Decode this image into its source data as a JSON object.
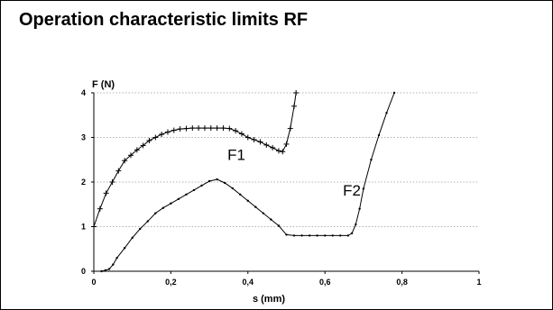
{
  "page": {
    "title": "Operation characteristic limits RF"
  },
  "chart_data": {
    "type": "line",
    "title": "Operation characteristic limits RF",
    "xlabel": "s (mm)",
    "ylabel": "F (N)",
    "xlim": [
      0,
      1
    ],
    "ylim": [
      0,
      4
    ],
    "x_ticks": [
      0,
      0.2,
      0.4,
      0.6,
      0.8,
      1
    ],
    "x_tick_labels": [
      "0",
      "0,2",
      "0,4",
      "0,6",
      "0,8",
      "1"
    ],
    "y_ticks": [
      0,
      1,
      2,
      3,
      4
    ],
    "y_tick_labels": [
      "0",
      "1",
      "2",
      "3",
      "4"
    ],
    "grid": "horizontal-dotted",
    "annotations": [
      {
        "text": "F1",
        "x": 0.37,
        "y": 2.5
      },
      {
        "text": "F2",
        "x": 0.67,
        "y": 1.7
      }
    ],
    "series": [
      {
        "name": "",
        "color": "#000000",
        "marker": "plus",
        "x": [
          0,
          0.016,
          0.032,
          0.048,
          0.064,
          0.08,
          0.096,
          0.112,
          0.128,
          0.144,
          0.16,
          0.176,
          0.192,
          0.208,
          0.224,
          0.24,
          0.256,
          0.272,
          0.288,
          0.304,
          0.32,
          0.336,
          0.352,
          0.368,
          0.384,
          0.4,
          0.416,
          0.432,
          0.448,
          0.464,
          0.48,
          0.49,
          0.5,
          0.51,
          0.52,
          0.525
        ],
        "y": [
          1.0,
          1.4,
          1.75,
          2.0,
          2.25,
          2.48,
          2.6,
          2.72,
          2.82,
          2.93,
          3.0,
          3.07,
          3.12,
          3.16,
          3.19,
          3.2,
          3.21,
          3.21,
          3.21,
          3.21,
          3.21,
          3.21,
          3.2,
          3.15,
          3.08,
          3.0,
          2.95,
          2.9,
          2.83,
          2.77,
          2.7,
          2.68,
          2.85,
          3.2,
          3.7,
          4.0
        ]
      },
      {
        "name": "",
        "color": "#000000",
        "marker": "dot",
        "x": [
          0.02,
          0.03,
          0.04,
          0.05,
          0.06,
          0.08,
          0.1,
          0.12,
          0.14,
          0.16,
          0.18,
          0.2,
          0.22,
          0.24,
          0.26,
          0.28,
          0.3,
          0.32,
          0.34,
          0.36,
          0.38,
          0.4,
          0.42,
          0.44,
          0.46,
          0.48,
          0.5,
          0.52,
          0.54,
          0.56,
          0.58,
          0.6,
          0.62,
          0.64,
          0.66,
          0.67,
          0.68,
          0.69,
          0.7,
          0.72,
          0.74,
          0.76,
          0.78
        ],
        "y": [
          0.0,
          0.02,
          0.05,
          0.15,
          0.3,
          0.52,
          0.75,
          0.95,
          1.12,
          1.3,
          1.42,
          1.52,
          1.62,
          1.72,
          1.82,
          1.92,
          2.02,
          2.06,
          1.98,
          1.86,
          1.72,
          1.58,
          1.44,
          1.3,
          1.16,
          1.02,
          0.82,
          0.8,
          0.8,
          0.8,
          0.8,
          0.8,
          0.8,
          0.8,
          0.8,
          0.85,
          1.05,
          1.4,
          1.85,
          2.5,
          3.05,
          3.55,
          4.0
        ]
      }
    ]
  }
}
